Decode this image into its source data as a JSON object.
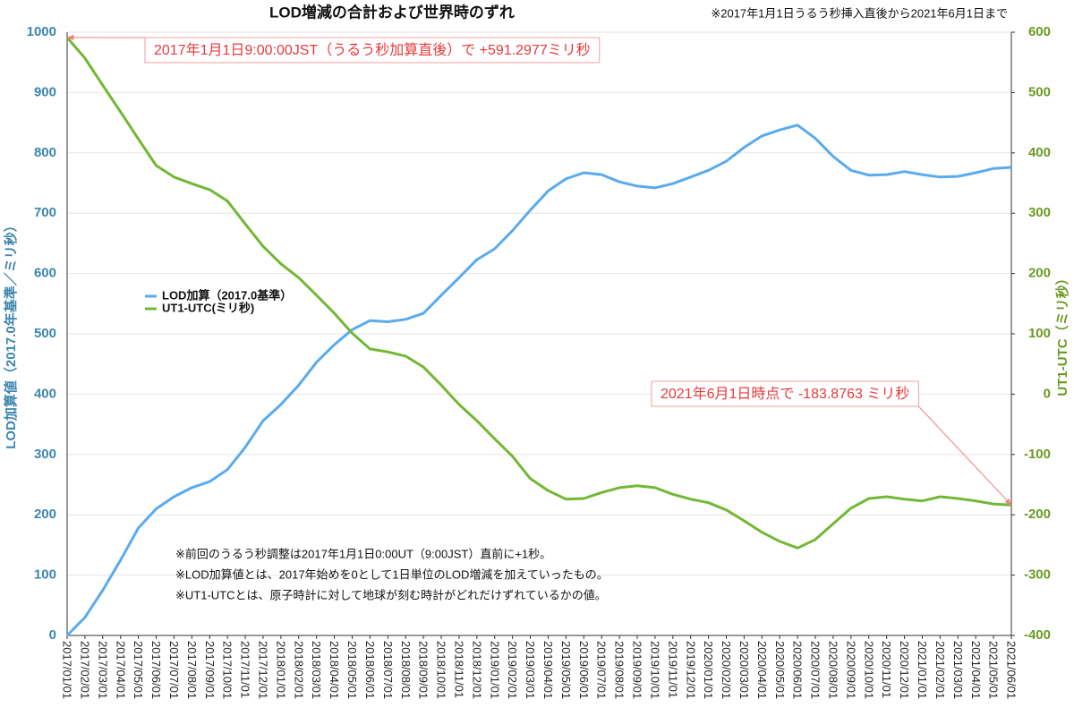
{
  "chart_data": {
    "type": "line",
    "title": "LOD増減の合計および世界時のずれ",
    "subtitle": "※2017年1月1日うるう秒挿入直後から2021年6月1日まで",
    "ylabel": "LOD加算値（2017.0年基準／ミリ秒）",
    "y2label": "UT1-UTC（ミリ秒）",
    "categories": [
      "2017/01/01",
      "2017/02/01",
      "2017/03/01",
      "2017/04/01",
      "2017/05/01",
      "2017/06/01",
      "2017/07/01",
      "2017/08/01",
      "2017/09/01",
      "2017/10/01",
      "2017/11/01",
      "2017/12/01",
      "2018/01/01",
      "2018/02/01",
      "2018/03/01",
      "2018/04/01",
      "2018/05/01",
      "2018/06/01",
      "2018/07/01",
      "2018/08/01",
      "2018/09/01",
      "2018/10/01",
      "2018/11/01",
      "2018/12/01",
      "2019/01/01",
      "2019/02/01",
      "2019/03/01",
      "2019/04/01",
      "2019/05/01",
      "2019/06/01",
      "2019/07/01",
      "2019/08/01",
      "2019/09/01",
      "2019/10/01",
      "2019/11/01",
      "2019/12/01",
      "2020/01/01",
      "2020/02/01",
      "2020/03/01",
      "2020/04/01",
      "2020/05/01",
      "2020/06/01",
      "2020/07/01",
      "2020/08/01",
      "2020/09/01",
      "2020/10/01",
      "2020/11/01",
      "2020/12/01",
      "2021/01/01",
      "2021/02/01",
      "2021/03/01",
      "2021/04/01",
      "2021/05/01",
      "2021/06/01"
    ],
    "series": [
      {
        "name": "LOD加算（2017.0基準）",
        "color": "#5aabee",
        "values": [
          0,
          30,
          75,
          125,
          178,
          210,
          230,
          245,
          255,
          275,
          312,
          356,
          383,
          415,
          453,
          482,
          507,
          522,
          520,
          524,
          534,
          564,
          593,
          623,
          641,
          671,
          705,
          737,
          757,
          767,
          764,
          752,
          745,
          742,
          749,
          760,
          771,
          786,
          809,
          828,
          838,
          846,
          824,
          794,
          771,
          763,
          764,
          769,
          764,
          760,
          761,
          767,
          774,
          776
        ]
      },
      {
        "name": "UT1-UTC(ミリ秒)",
        "color": "#72b834",
        "axis": "y2",
        "values": [
          591.2977,
          557,
          512,
          468,
          423,
          379,
          360,
          349,
          339,
          320,
          282,
          245,
          216,
          193,
          164,
          134,
          101,
          75,
          70,
          63,
          45,
          15,
          -17,
          -44,
          -74,
          -103,
          -140,
          -160,
          -174,
          -173,
          -163,
          -155,
          -152,
          -155,
          -166,
          -174,
          -180,
          -192,
          -210,
          -229,
          -244,
          -255,
          -241,
          -215,
          -189,
          -173,
          -170,
          -174,
          -177,
          -170,
          -173,
          -177,
          -182,
          -183.8763
        ]
      }
    ],
    "ylim": [
      0,
      1000
    ],
    "yticks": [
      0,
      100,
      200,
      300,
      400,
      500,
      600,
      700,
      800,
      900,
      1000
    ],
    "y2lim": [
      -400,
      600
    ],
    "y2ticks": [
      -400,
      -300,
      -200,
      -100,
      0,
      100,
      200,
      300,
      400,
      500,
      600
    ],
    "grid": true,
    "legend": "left",
    "annotations": [
      {
        "text": "2017年1月1日9:00:00JST（うるう秒加算直後）で +591.2977ミリ秒",
        "series": 1,
        "index": 0
      },
      {
        "text": "2021年6月1日時点で -183.8763 ミリ秒",
        "series": 1,
        "index": 53
      }
    ],
    "notes": [
      "※前回のうるう秒調整は2017年1月1日0:00UT（9:00JST）直前に+1秒。",
      "※LOD加算値とは、2017年始めを0として1日単位のLOD増減を加えていったもの。",
      "※UT1-UTCとは、原子時計に対して地球が刻む時計がどれだけずれているかの値。"
    ]
  }
}
